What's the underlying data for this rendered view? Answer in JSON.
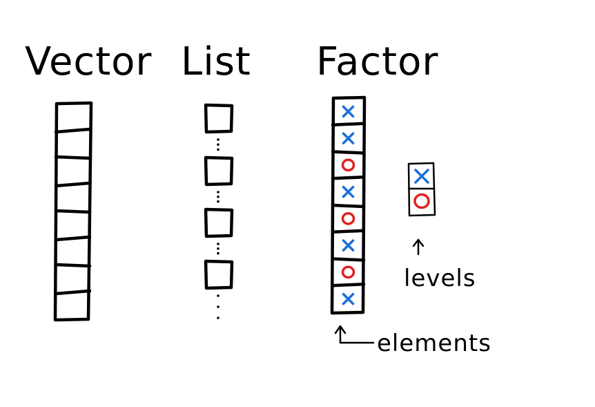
{
  "titles": {
    "vector": "Vector",
    "list": "List",
    "factor": "Factor"
  },
  "labels": {
    "elements": "elements",
    "levels": "levels"
  },
  "factor": {
    "elements": [
      "x",
      "x",
      "o",
      "x",
      "o",
      "x",
      "o",
      "x"
    ],
    "levels": [
      "x",
      "o"
    ]
  },
  "vector": {
    "cells": 8
  },
  "list": {
    "items": 4
  },
  "colors": {
    "ink": "#000000",
    "x_mark": "#1a6fd6",
    "o_mark": "#e02020"
  },
  "icons": {
    "elements_pointer": "arrow-up-icon",
    "levels_pointer": "arrow-up-icon"
  }
}
